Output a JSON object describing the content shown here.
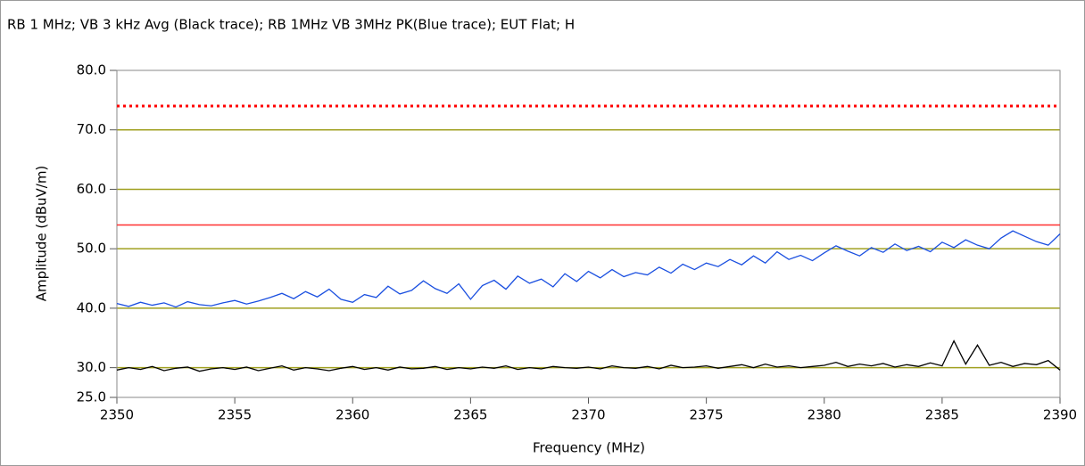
{
  "chart_data": {
    "type": "line",
    "title": "RB 1 MHz; VB 3 kHz Avg (Black trace); RB 1MHz VB 3MHz PK(Blue trace); EUT Flat; H",
    "x_label": "Frequency (MHz)",
    "y_label": "Amplitude (dBuV/m)",
    "x": [
      2350,
      2350.5,
      2351,
      2351.5,
      2352,
      2352.5,
      2353,
      2353.5,
      2354,
      2354.5,
      2355,
      2355.5,
      2356,
      2356.5,
      2357,
      2357.5,
      2358,
      2358.5,
      2359,
      2359.5,
      2360,
      2360.5,
      2361,
      2361.5,
      2362,
      2362.5,
      2363,
      2363.5,
      2364,
      2364.5,
      2365,
      2365.5,
      2366,
      2366.5,
      2367,
      2367.5,
      2368,
      2368.5,
      2369,
      2369.5,
      2370,
      2370.5,
      2371,
      2371.5,
      2372,
      2372.5,
      2373,
      2373.5,
      2374,
      2374.5,
      2375,
      2375.5,
      2376,
      2376.5,
      2377,
      2377.5,
      2378,
      2378.5,
      2379,
      2379.5,
      2380,
      2380.5,
      2381,
      2381.5,
      2382,
      2382.5,
      2383,
      2383.5,
      2384,
      2384.5,
      2385,
      2385.5,
      2386,
      2386.5,
      2387,
      2387.5,
      2388,
      2388.5,
      2389,
      2389.5,
      2390
    ],
    "series": [
      {
        "color": "#1a4fe0",
        "values": [
          40.8,
          40.3,
          41.0,
          40.5,
          40.9,
          40.2,
          41.1,
          40.6,
          40.4,
          40.9,
          41.3,
          40.7,
          41.2,
          41.8,
          42.5,
          41.6,
          42.8,
          41.9,
          43.2,
          41.5,
          41.0,
          42.3,
          41.8,
          43.7,
          42.4,
          43.0,
          44.6,
          43.3,
          42.5,
          44.1,
          41.5,
          43.8,
          44.7,
          43.2,
          45.4,
          44.2,
          44.9,
          43.6,
          45.8,
          44.5,
          46.2,
          45.1,
          46.5,
          45.3,
          46.0,
          45.6,
          46.9,
          45.9,
          47.4,
          46.5,
          47.6,
          47.0,
          48.2,
          47.3,
          48.8,
          47.6,
          49.5,
          48.2,
          48.9,
          48.0,
          49.3,
          50.5,
          49.6,
          48.8,
          50.2,
          49.4,
          50.8,
          49.7,
          50.4,
          49.5,
          51.1,
          50.2,
          51.5,
          50.6,
          50.0,
          51.8,
          53.0,
          52.1,
          51.2,
          50.6,
          52.5
        ]
      },
      {
        "color": "#000000",
        "values": [
          29.6,
          30.0,
          29.7,
          30.2,
          29.5,
          29.9,
          30.1,
          29.4,
          29.8,
          30.0,
          29.7,
          30.1,
          29.5,
          29.9,
          30.3,
          29.6,
          30.0,
          29.8,
          29.5,
          29.9,
          30.2,
          29.7,
          30.0,
          29.6,
          30.1,
          29.8,
          29.9,
          30.2,
          29.7,
          30.0,
          29.8,
          30.1,
          29.9,
          30.3,
          29.7,
          30.0,
          29.8,
          30.2,
          30.0,
          29.9,
          30.1,
          29.8,
          30.3,
          30.0,
          29.9,
          30.2,
          29.8,
          30.4,
          30.0,
          30.1,
          30.3,
          29.9,
          30.2,
          30.5,
          30.0,
          30.6,
          30.1,
          30.3,
          30.0,
          30.2,
          30.4,
          30.9,
          30.2,
          30.6,
          30.3,
          30.7,
          30.1,
          30.5,
          30.2,
          30.8,
          30.3,
          34.5,
          30.6,
          33.8,
          30.4,
          30.9,
          30.2,
          30.7,
          30.5,
          31.2,
          29.6
        ]
      }
    ],
    "limit_lines": [
      {
        "value": 74,
        "color": "#ff0000",
        "style": "dotted"
      },
      {
        "value": 54,
        "color": "#ff3030",
        "style": "solid"
      }
    ],
    "xlim": [
      2350,
      2390
    ],
    "xticks": [
      2350,
      2355,
      2360,
      2365,
      2370,
      2375,
      2380,
      2385,
      2390
    ],
    "ylim": [
      25,
      80
    ],
    "yticks": [
      {
        "value": 25,
        "label": "25.0"
      },
      {
        "value": 30,
        "label": "30.0"
      },
      {
        "value": 40,
        "label": "40.0"
      },
      {
        "value": 50,
        "label": "50.0"
      },
      {
        "value": 60,
        "label": "60.0"
      },
      {
        "value": 70,
        "label": "70.0"
      },
      {
        "value": 80,
        "label": "80.0"
      }
    ],
    "grid_color": "#a0a020",
    "grid": true
  }
}
